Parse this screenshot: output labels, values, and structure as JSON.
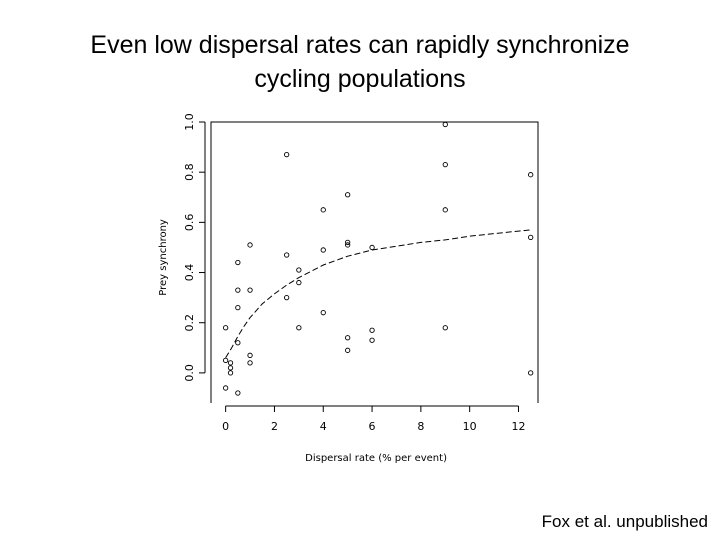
{
  "slide": {
    "title_line1": "Even low dispersal rates can rapidly synchronize",
    "title_line2": "cycling populations",
    "credit": "Fox et al. unpublished"
  },
  "chart_data": {
    "type": "scatter",
    "title": "",
    "xlabel": "Dispersal rate (% per event)",
    "ylabel": "Prey synchrony",
    "xlim": [
      -0.6,
      12.8
    ],
    "ylim": [
      -0.12,
      1.0
    ],
    "x_ticks": [
      0,
      2,
      4,
      6,
      8,
      10,
      12
    ],
    "x_tick_labels": [
      "0",
      "2",
      "4",
      "6",
      "8",
      "10",
      "12"
    ],
    "y_ticks": [
      0.0,
      0.2,
      0.4,
      0.6,
      0.8,
      1.0
    ],
    "y_tick_labels": [
      "0.0",
      "0.2",
      "0.4",
      "0.6",
      "0.8",
      "1.0"
    ],
    "points": [
      {
        "x": 0.0,
        "y": 0.18
      },
      {
        "x": 0.0,
        "y": 0.05
      },
      {
        "x": 0.0,
        "y": -0.06
      },
      {
        "x": 0.2,
        "y": 0.04
      },
      {
        "x": 0.2,
        "y": 0.02
      },
      {
        "x": 0.2,
        "y": 0.0
      },
      {
        "x": 0.5,
        "y": 0.44
      },
      {
        "x": 0.5,
        "y": 0.33
      },
      {
        "x": 0.5,
        "y": 0.26
      },
      {
        "x": 0.5,
        "y": 0.12
      },
      {
        "x": 0.5,
        "y": -0.08
      },
      {
        "x": 1.0,
        "y": 0.51
      },
      {
        "x": 1.0,
        "y": 0.33
      },
      {
        "x": 1.0,
        "y": 0.07
      },
      {
        "x": 1.0,
        "y": 0.04
      },
      {
        "x": 2.5,
        "y": 0.87
      },
      {
        "x": 2.5,
        "y": 0.47
      },
      {
        "x": 2.5,
        "y": 0.3
      },
      {
        "x": 3.0,
        "y": 0.41
      },
      {
        "x": 3.0,
        "y": 0.36
      },
      {
        "x": 3.0,
        "y": 0.18
      },
      {
        "x": 4.0,
        "y": 0.65
      },
      {
        "x": 4.0,
        "y": 0.49
      },
      {
        "x": 4.0,
        "y": 0.24
      },
      {
        "x": 5.0,
        "y": 0.71
      },
      {
        "x": 5.0,
        "y": 0.52
      },
      {
        "x": 5.0,
        "y": 0.51
      },
      {
        "x": 5.0,
        "y": 0.14
      },
      {
        "x": 5.0,
        "y": 0.09
      },
      {
        "x": 6.0,
        "y": 0.5
      },
      {
        "x": 6.0,
        "y": 0.17
      },
      {
        "x": 6.0,
        "y": 0.13
      },
      {
        "x": 9.0,
        "y": 0.99
      },
      {
        "x": 9.0,
        "y": 0.83
      },
      {
        "x": 9.0,
        "y": 0.65
      },
      {
        "x": 9.0,
        "y": 0.18
      },
      {
        "x": 12.5,
        "y": 0.79
      },
      {
        "x": 12.5,
        "y": 0.54
      },
      {
        "x": 12.5,
        "y": 0.0
      }
    ],
    "fit_line": {
      "style": "dashed",
      "x": [
        0.0,
        0.25,
        0.5,
        0.75,
        1.0,
        1.5,
        2.0,
        2.5,
        3.0,
        3.5,
        4.0,
        5.0,
        6.0,
        7.0,
        8.0,
        9.0,
        10.0,
        11.0,
        12.0,
        12.5
      ],
      "y": [
        0.06,
        0.1,
        0.145,
        0.185,
        0.22,
        0.275,
        0.315,
        0.35,
        0.38,
        0.405,
        0.43,
        0.465,
        0.49,
        0.505,
        0.52,
        0.53,
        0.545,
        0.555,
        0.565,
        0.57
      ]
    }
  }
}
